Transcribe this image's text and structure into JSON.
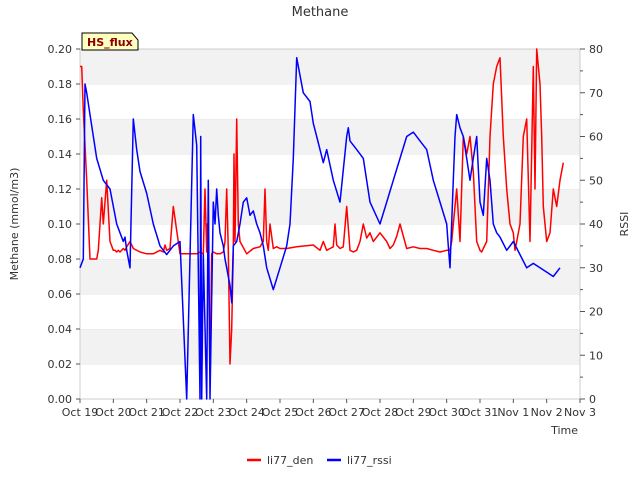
{
  "chart_data": {
    "type": "line",
    "title": "Methane",
    "xlabel": "Time",
    "ylabel": "Methane (mmol/m3)",
    "y2label": "RSSI",
    "badge": "HS_flux",
    "x_ticks": [
      "Oct 19",
      "Oct 20",
      "Oct 21",
      "Oct 22",
      "Oct 23",
      "Oct 24",
      "Oct 25",
      "Oct 26",
      "Oct 27",
      "Oct 28",
      "Oct 29",
      "Oct 30",
      "Oct 31",
      "Nov 1",
      "Nov 2",
      "Nov 3"
    ],
    "xlim": [
      0,
      15
    ],
    "ylim": [
      0,
      0.2
    ],
    "y_ticks": [
      "0.00",
      "0.02",
      "0.04",
      "0.06",
      "0.08",
      "0.10",
      "0.12",
      "0.14",
      "0.16",
      "0.18",
      "0.20"
    ],
    "y2lim": [
      0,
      80
    ],
    "y2_ticks": [
      "0",
      "10",
      "20",
      "30",
      "40",
      "50",
      "60",
      "70",
      "80"
    ],
    "grid": "horizontal bands",
    "legend": "bottom-center",
    "series": [
      {
        "name": "li77_den",
        "axis": "left",
        "color": "#ff0000",
        "x": [
          0.0,
          0.05,
          0.1,
          0.2,
          0.3,
          0.5,
          0.55,
          0.6,
          0.65,
          0.7,
          0.8,
          0.9,
          1.0,
          1.05,
          1.1,
          1.15,
          1.2,
          1.25,
          1.3,
          1.35,
          1.4,
          1.5,
          1.6,
          1.8,
          2.0,
          2.2,
          2.4,
          2.5,
          2.55,
          2.6,
          2.7,
          2.8,
          3.0,
          3.2,
          3.4,
          3.5,
          3.6,
          3.7,
          3.75,
          3.8,
          3.82,
          3.85,
          3.9,
          3.95,
          4.0,
          4.1,
          4.2,
          4.3,
          4.35,
          4.4,
          4.45,
          4.5,
          4.55,
          4.6,
          4.62,
          4.65,
          4.7,
          4.75,
          4.8,
          5.0,
          5.2,
          5.4,
          5.5,
          5.55,
          5.6,
          5.65,
          5.7,
          5.8,
          5.9,
          6.0,
          6.2,
          6.5,
          7.0,
          7.2,
          7.3,
          7.4,
          7.5,
          7.6,
          7.65,
          7.7,
          7.8,
          7.9,
          8.0,
          8.1,
          8.2,
          8.3,
          8.4,
          8.5,
          8.6,
          8.7,
          8.8,
          9.0,
          9.2,
          9.3,
          9.4,
          9.5,
          9.6,
          9.8,
          10.0,
          10.2,
          10.4,
          10.6,
          10.8,
          11.0,
          11.1,
          11.15,
          11.2,
          11.3,
          11.4,
          11.5,
          11.6,
          11.7,
          11.8,
          11.9,
          12.0,
          12.05,
          12.1,
          12.2,
          12.3,
          12.4,
          12.5,
          12.6,
          12.7,
          12.8,
          12.9,
          13.0,
          13.05,
          13.1,
          13.2,
          13.3,
          13.4,
          13.5,
          13.6,
          13.65,
          13.7,
          13.8,
          13.85,
          13.9,
          14.0,
          14.1,
          14.2,
          14.3,
          14.4,
          14.5
        ],
        "y": [
          0.19,
          0.19,
          0.165,
          0.125,
          0.08,
          0.08,
          0.085,
          0.1,
          0.115,
          0.1,
          0.125,
          0.09,
          0.085,
          0.085,
          0.084,
          0.085,
          0.084,
          0.085,
          0.086,
          0.085,
          0.087,
          0.09,
          0.086,
          0.084,
          0.083,
          0.083,
          0.085,
          0.084,
          0.088,
          0.085,
          0.086,
          0.11,
          0.083,
          0.083,
          0.083,
          0.083,
          0.084,
          0.083,
          0.12,
          0.084,
          0.1,
          0.085,
          0.015,
          0.083,
          0.084,
          0.083,
          0.083,
          0.084,
          0.09,
          0.12,
          0.085,
          0.02,
          0.04,
          0.085,
          0.14,
          0.09,
          0.16,
          0.1,
          0.09,
          0.083,
          0.086,
          0.087,
          0.09,
          0.12,
          0.09,
          0.085,
          0.1,
          0.086,
          0.087,
          0.086,
          0.086,
          0.087,
          0.088,
          0.085,
          0.09,
          0.085,
          0.086,
          0.087,
          0.1,
          0.088,
          0.086,
          0.087,
          0.11,
          0.085,
          0.084,
          0.085,
          0.09,
          0.1,
          0.092,
          0.095,
          0.09,
          0.095,
          0.09,
          0.086,
          0.088,
          0.093,
          0.1,
          0.086,
          0.087,
          0.086,
          0.086,
          0.085,
          0.084,
          0.085,
          0.085,
          0.09,
          0.1,
          0.12,
          0.09,
          0.15,
          0.14,
          0.15,
          0.13,
          0.09,
          0.085,
          0.084,
          0.086,
          0.09,
          0.15,
          0.18,
          0.19,
          0.195,
          0.15,
          0.12,
          0.1,
          0.095,
          0.085,
          0.09,
          0.1,
          0.15,
          0.16,
          0.09,
          0.19,
          0.12,
          0.2,
          0.18,
          0.15,
          0.11,
          0.09,
          0.095,
          0.12,
          0.11,
          0.125,
          0.135
        ],
        "note": "values estimated from figure"
      },
      {
        "name": "li77_rssi",
        "axis": "right",
        "color": "#0000ff",
        "x": [
          0.0,
          0.1,
          0.15,
          0.2,
          0.3,
          0.5,
          0.7,
          0.9,
          1.1,
          1.2,
          1.3,
          1.35,
          1.4,
          1.5,
          1.6,
          1.7,
          1.8,
          2.0,
          2.2,
          2.4,
          2.6,
          2.8,
          3.0,
          3.2,
          3.4,
          3.5,
          3.6,
          3.62,
          3.65,
          3.7,
          3.8,
          3.85,
          3.9,
          4.0,
          4.05,
          4.1,
          4.15,
          4.2,
          4.3,
          4.35,
          4.4,
          4.45,
          4.5,
          4.55,
          4.6,
          4.7,
          4.8,
          4.9,
          5.0,
          5.1,
          5.2,
          5.3,
          5.4,
          5.5,
          5.6,
          5.8,
          6.0,
          6.2,
          6.3,
          6.4,
          6.5,
          6.7,
          6.9,
          7.0,
          7.1,
          7.2,
          7.3,
          7.4,
          7.6,
          7.8,
          8.0,
          8.05,
          8.1,
          8.3,
          8.5,
          8.7,
          9.0,
          9.2,
          9.4,
          9.6,
          9.8,
          10.0,
          10.2,
          10.4,
          10.6,
          10.8,
          11.0,
          11.05,
          11.1,
          11.2,
          11.25,
          11.3,
          11.4,
          11.5,
          11.6,
          11.7,
          11.8,
          11.9,
          12.0,
          12.1,
          12.2,
          12.3,
          12.4,
          12.5,
          12.6,
          12.8,
          13.0,
          13.2,
          13.4,
          13.6,
          13.8,
          14.0,
          14.2,
          14.4
        ],
        "y": [
          30,
          32,
          72,
          70,
          65,
          55,
          50,
          48,
          40,
          38,
          36,
          37,
          34,
          30,
          64,
          57,
          52,
          47,
          40,
          35,
          33,
          35,
          36,
          0,
          65,
          58,
          0,
          60,
          0,
          33,
          0,
          50,
          0,
          45,
          40,
          48,
          42,
          38,
          35,
          32,
          30,
          28,
          26,
          22,
          35,
          36,
          40,
          45,
          46,
          42,
          43,
          40,
          38,
          35,
          30,
          25,
          30,
          35,
          40,
          55,
          78,
          70,
          68,
          63,
          60,
          57,
          54,
          57,
          50,
          45,
          60,
          62,
          59,
          57,
          55,
          45,
          40,
          45,
          50,
          55,
          60,
          61,
          59,
          57,
          50,
          45,
          40,
          35,
          30,
          50,
          60,
          65,
          62,
          60,
          55,
          50,
          55,
          60,
          45,
          42,
          55,
          50,
          40,
          38,
          37,
          34,
          36,
          33,
          30,
          31,
          30,
          29,
          28,
          30
        ],
        "note": "values estimated from figure"
      }
    ]
  }
}
